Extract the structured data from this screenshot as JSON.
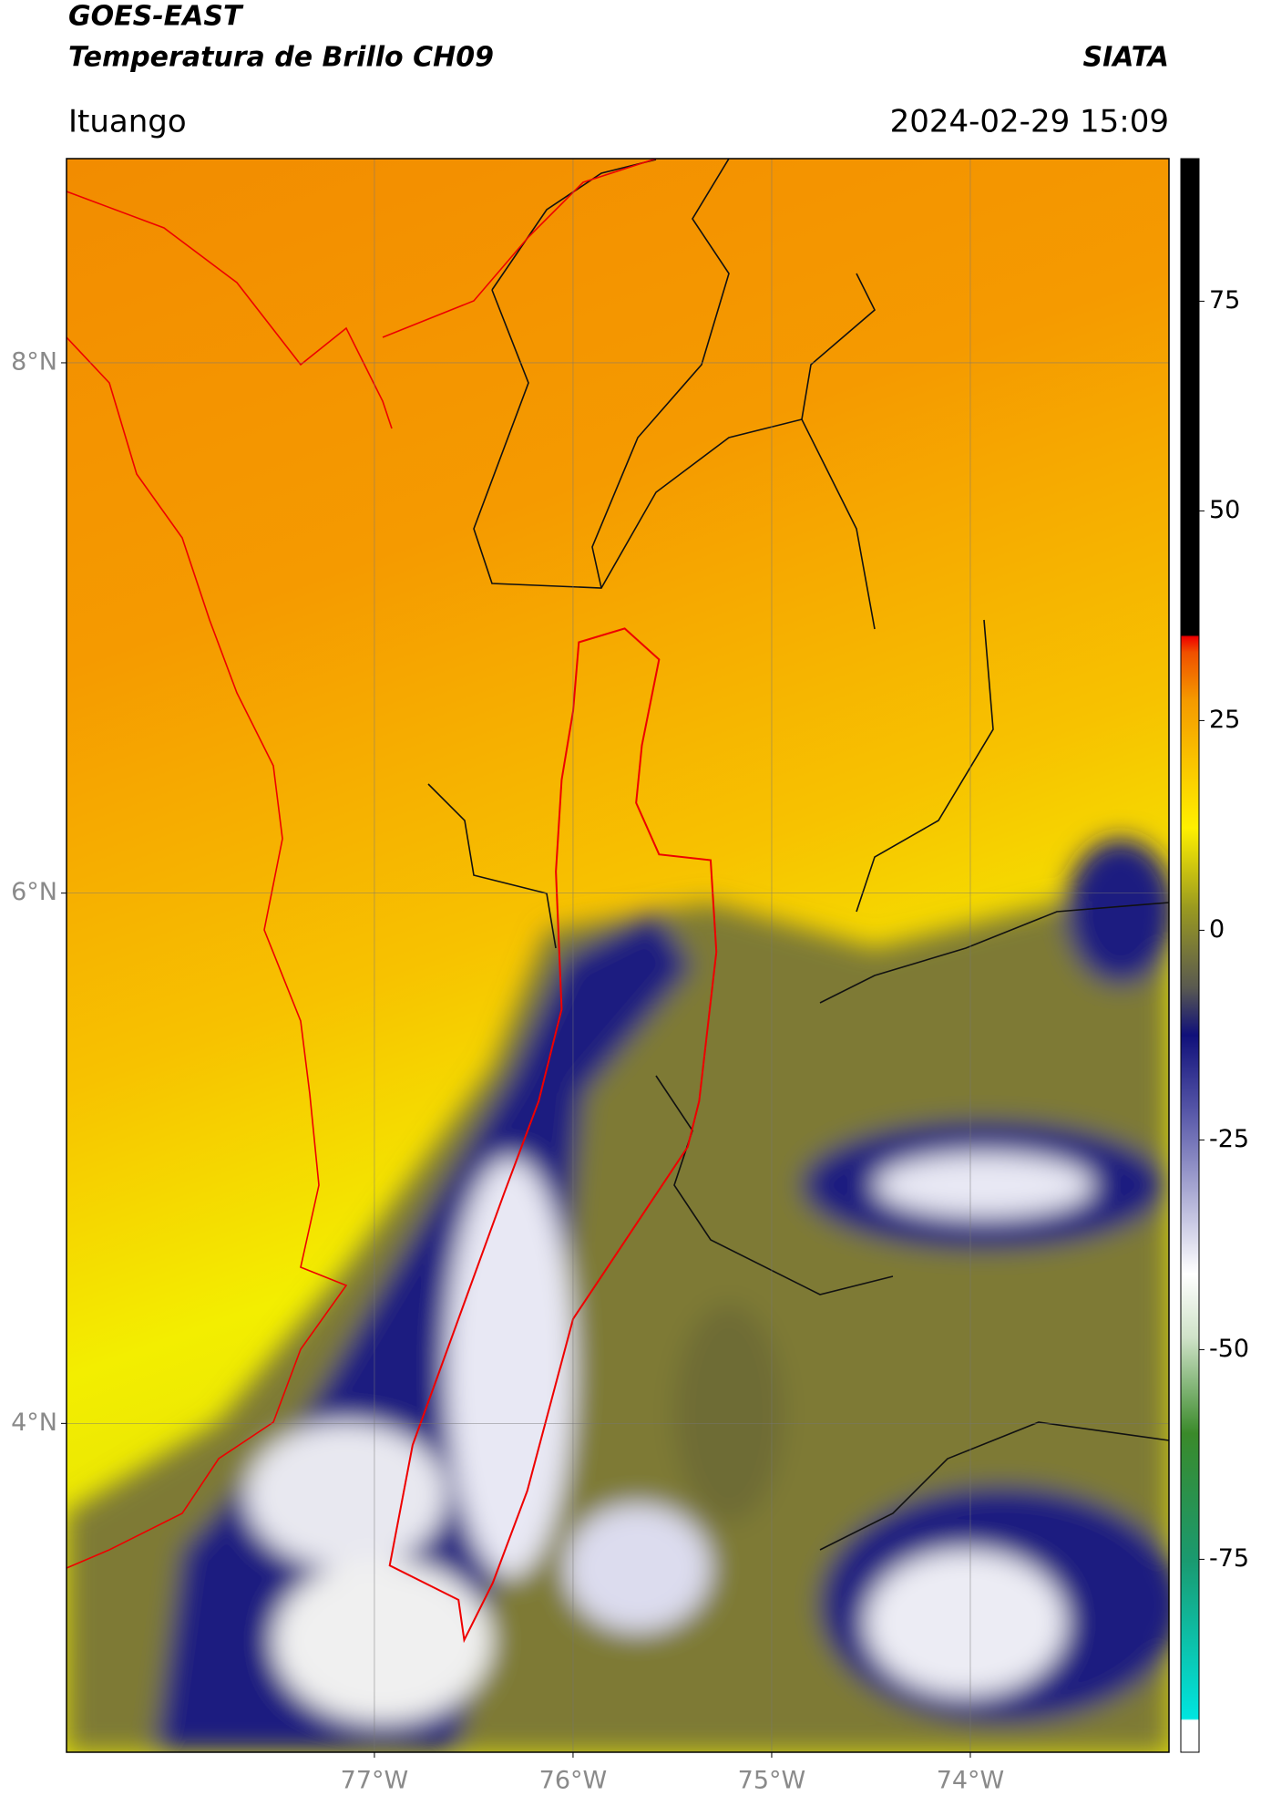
{
  "header": {
    "title": "GOES-EAST",
    "subtitle": "Temperatura de Brillo CH09",
    "source": "SIATA",
    "location": "Ituango",
    "datetime": "2024-02-29 15:09"
  },
  "chart_data": {
    "type": "map",
    "xlim": [
      -78.55,
      -73.0
    ],
    "ylim": [
      2.76,
      8.77
    ],
    "xticks": [
      {
        "value": -77,
        "label": "77°W"
      },
      {
        "value": -76,
        "label": "76°W"
      },
      {
        "value": -75,
        "label": "75°W"
      },
      {
        "value": -74,
        "label": "74°W"
      }
    ],
    "yticks": [
      {
        "value": 8,
        "label": "8°N"
      },
      {
        "value": 6,
        "label": "6°N"
      },
      {
        "value": 4,
        "label": "4°N"
      }
    ],
    "grid": true,
    "colorbar": {
      "lim": [
        -98,
        92
      ],
      "ticks": [
        75,
        50,
        25,
        0,
        -25,
        -50,
        -75
      ]
    }
  }
}
